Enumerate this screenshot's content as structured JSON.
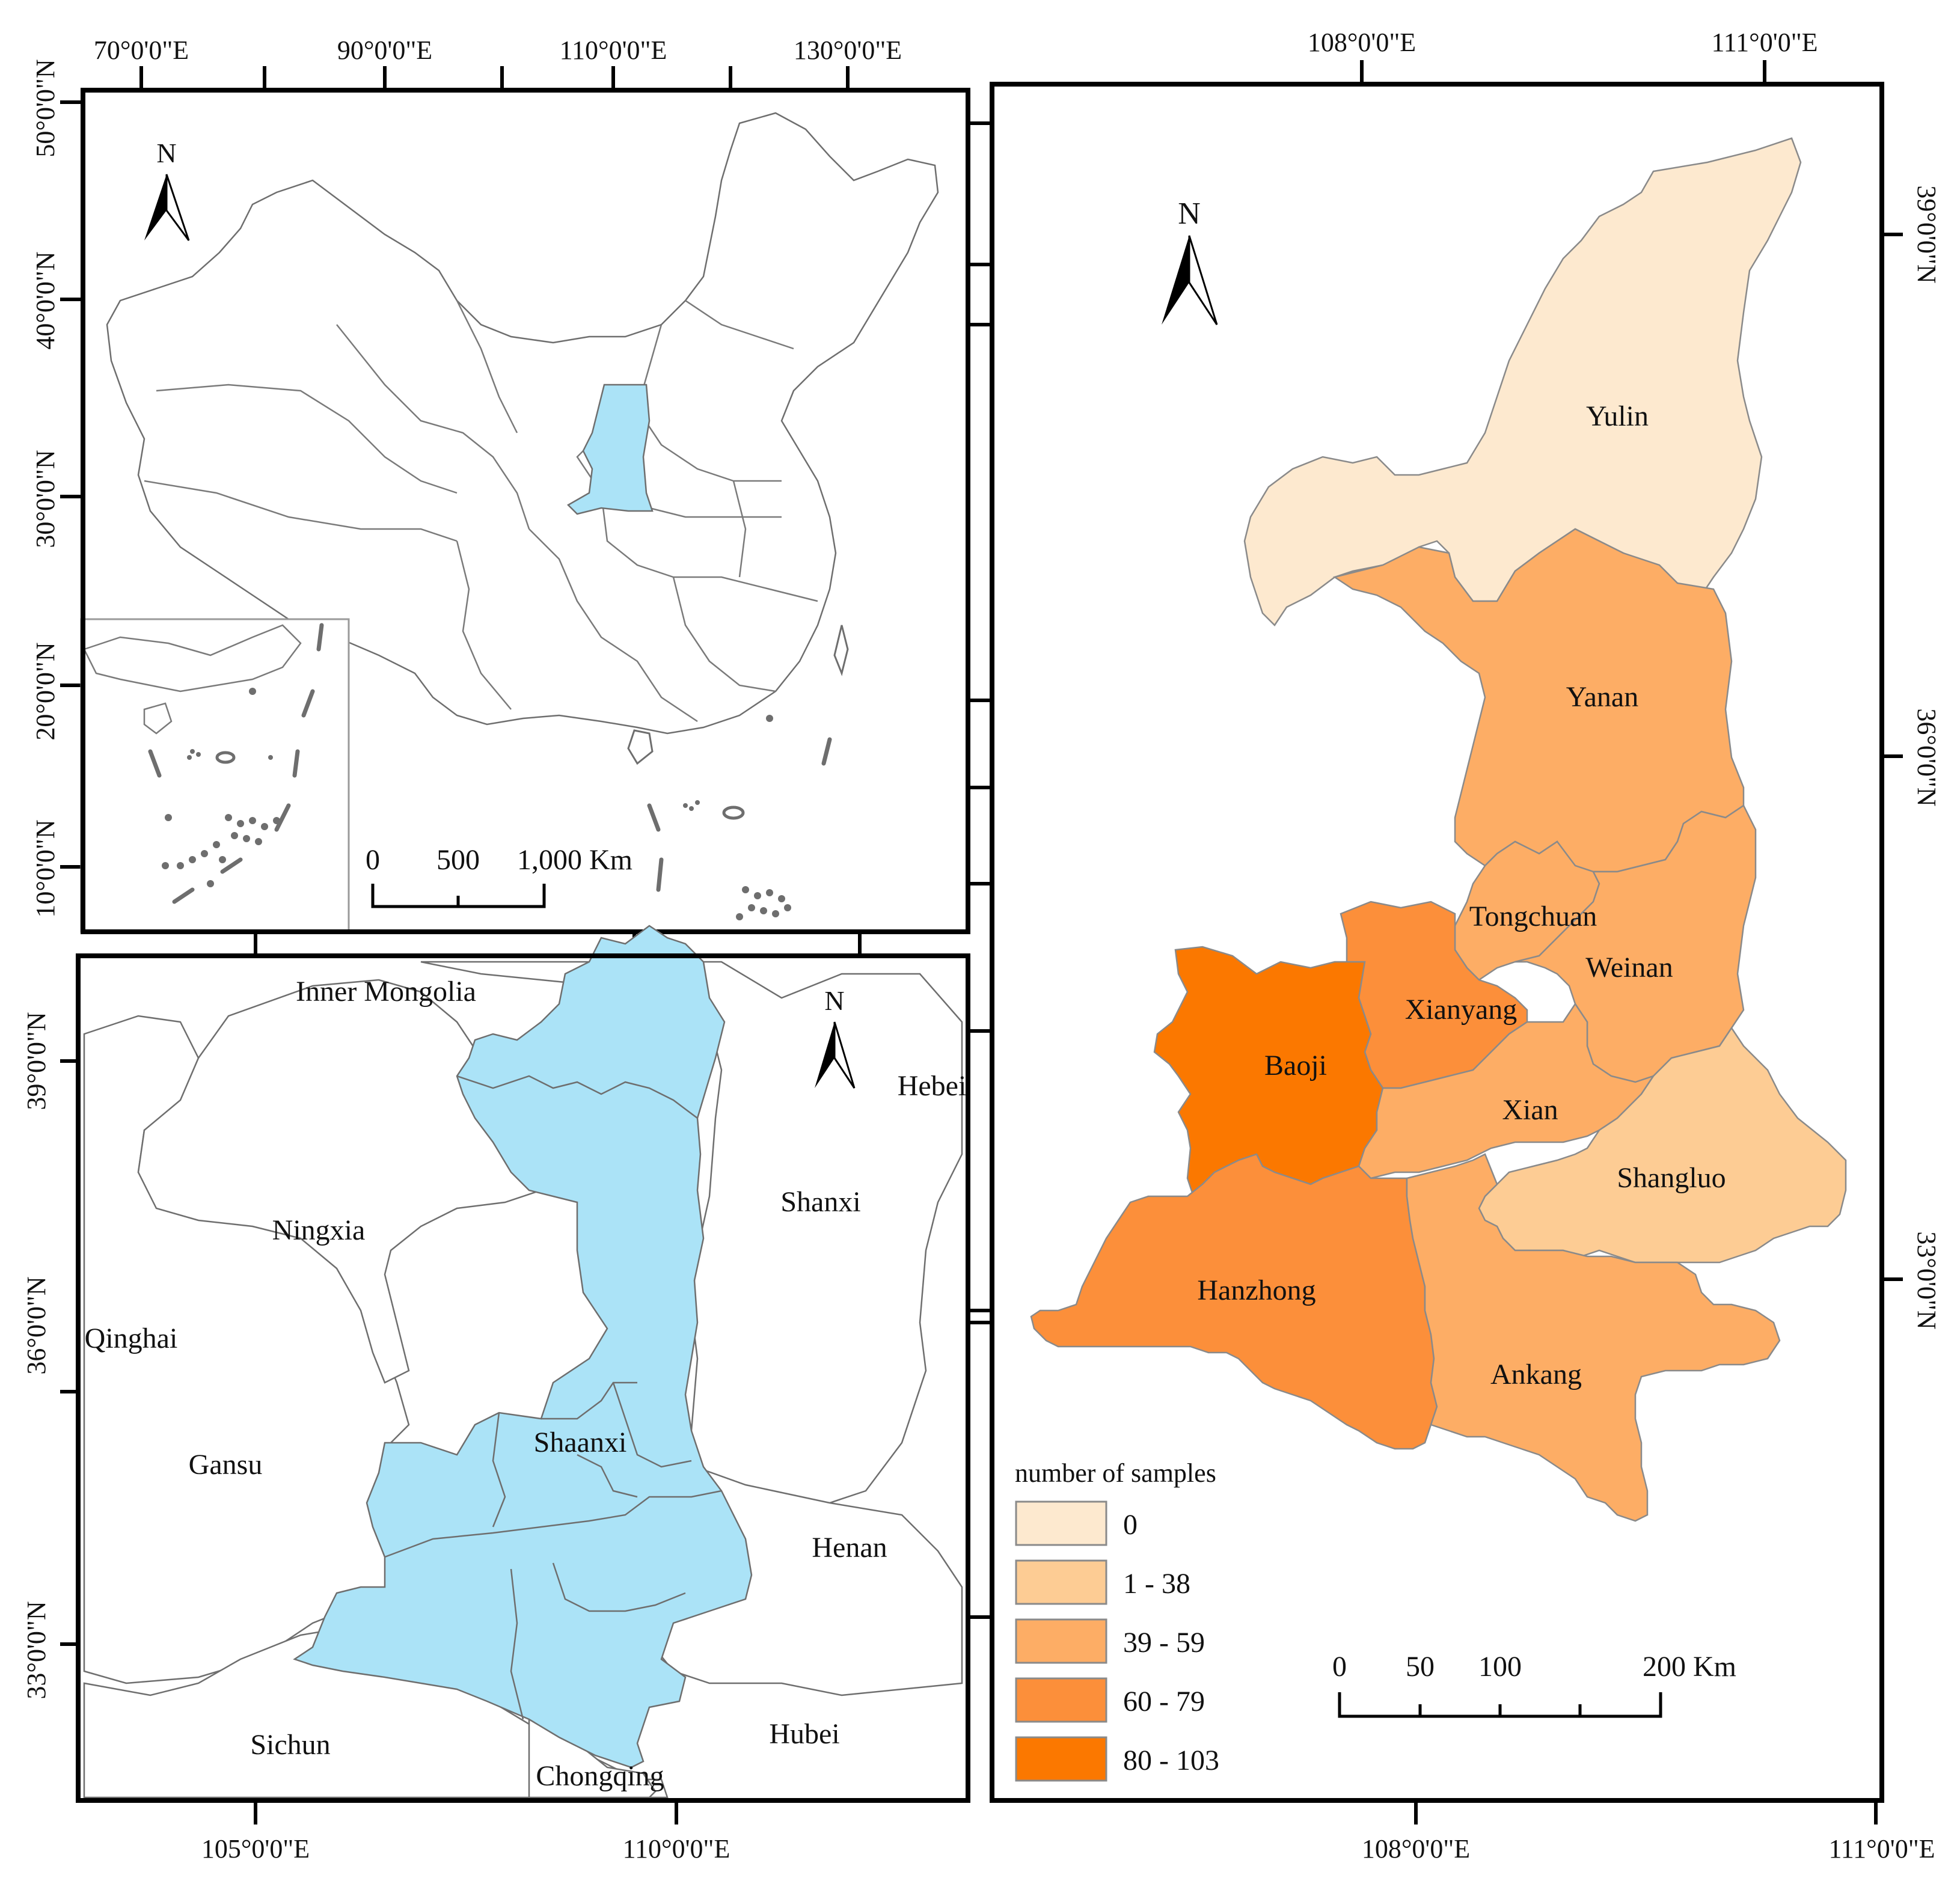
{
  "overview_map": {
    "top_coords": [
      "70°0'0\"E",
      "90°0'0\"E",
      "110°0'0\"E",
      "130°0'0\"E"
    ],
    "left_coords": [
      "50°0'0\"N",
      "40°0'0\"N",
      "30°0'0\"N",
      "20°0'0\"N",
      "10°0'0\"N"
    ],
    "north": "N",
    "scale_labels": [
      "0",
      "500",
      "1,000 Km"
    ],
    "highlight_color": "#abe3f7"
  },
  "regional_map": {
    "bottom_coords": [
      "105°0'0\"E",
      "110°0'0\"E"
    ],
    "left_coords": [
      "39°0'0\"N",
      "36°0'0\"N",
      "33°0'0\"N"
    ],
    "north": "N",
    "provinces": [
      "Inner Mongolia",
      "Hebei",
      "Ningxia",
      "Shanxi",
      "Qinghai",
      "Shaanxi",
      "Gansu",
      "Henan",
      "Sichun",
      "Hubei",
      "Chongqing"
    ],
    "highlight_color": "#abe3f7"
  },
  "detail_map": {
    "top_coords": [
      "108°0'0\"E",
      "111°0'0\"E"
    ],
    "bottom_coords": [
      "108°0'0\"E",
      "111°0'0\"E"
    ],
    "right_coords": [
      "39°0'0\"N",
      "36°0'0\"N",
      "33°0'0\"N"
    ],
    "north": "N",
    "cities": [
      {
        "name": "Yulin",
        "class": "0",
        "color": "#fde9cf"
      },
      {
        "name": "Yanan",
        "class": "39 - 59",
        "color": "#fdad65"
      },
      {
        "name": "Tongchuan",
        "class": "39 - 59",
        "color": "#fdad65"
      },
      {
        "name": "Weinan",
        "class": "39 - 59",
        "color": "#fdad65"
      },
      {
        "name": "Xianyang",
        "class": "60 - 79",
        "color": "#fc8f3a"
      },
      {
        "name": "Baoji",
        "class": "80 - 103",
        "color": "#fb7800"
      },
      {
        "name": "Xian",
        "class": "39 - 59",
        "color": "#fdad65"
      },
      {
        "name": "Shangluo",
        "class": "1 - 38",
        "color": "#fdcc94"
      },
      {
        "name": "Hanzhong",
        "class": "60 - 79",
        "color": "#fc8f3a"
      },
      {
        "name": "Ankang",
        "class": "39 - 59",
        "color": "#fdad65"
      }
    ],
    "legend": {
      "title": "number of samples",
      "items": [
        {
          "label": "0",
          "color": "#fde9cf"
        },
        {
          "label": "1 - 38",
          "color": "#fdcc94"
        },
        {
          "label": "39 - 59",
          "color": "#fdad65"
        },
        {
          "label": "60 - 79",
          "color": "#fc8f3a"
        },
        {
          "label": "80 - 103",
          "color": "#fb7800"
        }
      ]
    },
    "scale_labels": [
      "0",
      "50",
      "100",
      "200 Km"
    ]
  }
}
